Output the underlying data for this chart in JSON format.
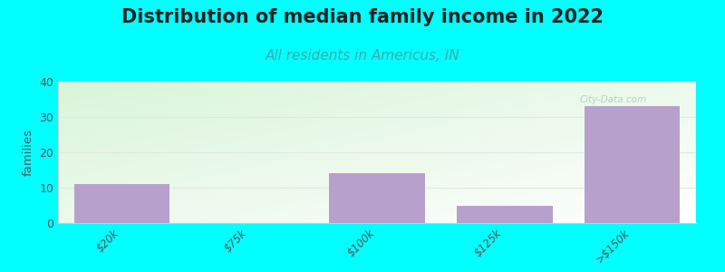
{
  "title": "Distribution of median family income in 2022",
  "subtitle": "All residents in Americus, IN",
  "ylabel": "families",
  "categories": [
    "$20k",
    "$75k",
    "$100k",
    "$125k",
    ">$150k"
  ],
  "values": [
    11,
    0,
    14,
    5,
    33
  ],
  "bar_color": "#b8a0cc",
  "ylim": [
    0,
    40
  ],
  "yticks": [
    0,
    10,
    20,
    30,
    40
  ],
  "background_color": "#00FFFF",
  "plot_bg_color_topleft": "#d8f0d0",
  "plot_bg_color_topright": "#f0f8f0",
  "plot_bg_color_bottom": "#ffffff",
  "watermark": "City-Data.com",
  "title_fontsize": 15,
  "title_fontweight": "bold",
  "title_color": "#222222",
  "subtitle_fontsize": 11,
  "subtitle_color": "#3aacac",
  "tick_color": "#555555",
  "ylabel_color": "#555555",
  "grid_color": "#e0e8e0",
  "spine_color": "#cccccc"
}
